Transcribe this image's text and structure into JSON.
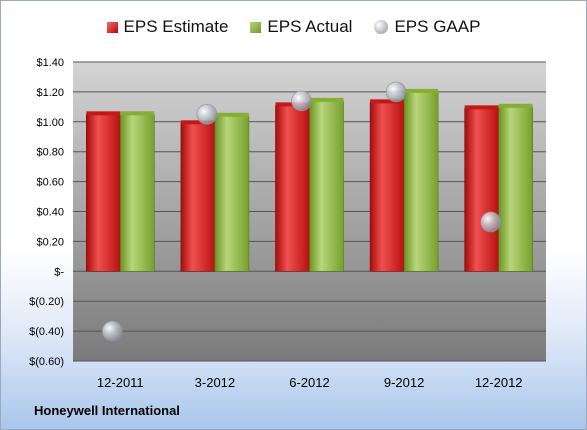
{
  "company": "Honeywell International",
  "colors": {
    "estimate": "#d42020",
    "actual": "#8fb43c",
    "gaap": "#b8bcc4"
  },
  "chart_data": {
    "type": "bar",
    "categories": [
      "12-2011",
      "3-2012",
      "6-2012",
      "9-2012",
      "12-2012"
    ],
    "series": [
      {
        "name": "EPS Estimate",
        "kind": "bar",
        "values": [
          1.05,
          0.99,
          1.11,
          1.13,
          1.09
        ]
      },
      {
        "name": "EPS Actual",
        "kind": "bar",
        "values": [
          1.05,
          1.04,
          1.14,
          1.2,
          1.1
        ]
      },
      {
        "name": "EPS GAAP",
        "kind": "marker",
        "values": [
          -0.4,
          1.05,
          1.14,
          1.2,
          0.33
        ]
      }
    ],
    "ylim": [
      -0.6,
      1.4
    ],
    "y_ticks": [
      {
        "value": 1.4,
        "label": "$1.40"
      },
      {
        "value": 1.2,
        "label": "$1.20"
      },
      {
        "value": 1.0,
        "label": "$1.00"
      },
      {
        "value": 0.8,
        "label": "$0.80"
      },
      {
        "value": 0.6,
        "label": "$0.60"
      },
      {
        "value": 0.4,
        "label": "$0.40"
      },
      {
        "value": 0.2,
        "label": "$0.20"
      },
      {
        "value": 0.0,
        "label": "$-"
      },
      {
        "value": -0.2,
        "label": "$(0.20)"
      },
      {
        "value": -0.4,
        "label": "$(0.40)"
      },
      {
        "value": -0.6,
        "label": "$(0.60)"
      }
    ],
    "title": "",
    "xlabel": "",
    "ylabel": "",
    "grid": true,
    "legend_position": "top"
  }
}
